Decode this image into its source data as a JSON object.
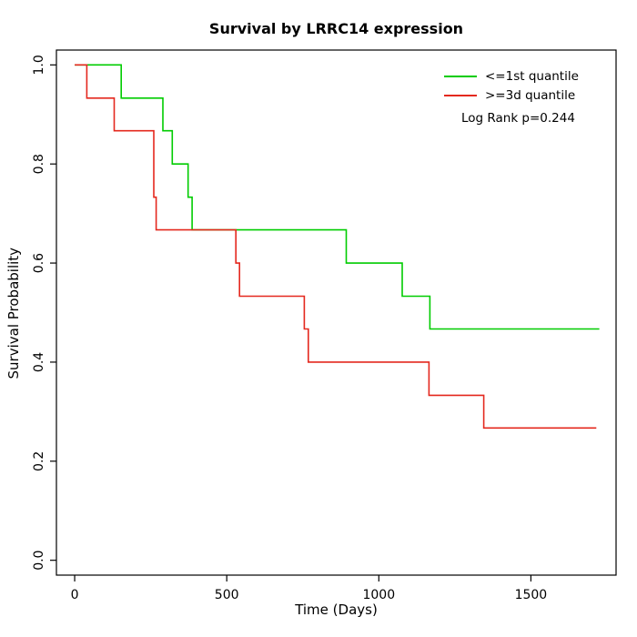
{
  "chart_data": {
    "type": "line",
    "subtype": "kaplan-meier-step",
    "title": "Survival by LRRC14 expression",
    "xlabel": "Time (Days)",
    "ylabel": "Survival Probability",
    "xlim": [
      -60,
      1780
    ],
    "ylim": [
      -0.03,
      1.03
    ],
    "xticks": [
      0,
      500,
      1000,
      1500
    ],
    "yticks": [
      0,
      0.2,
      0.4,
      0.6,
      0.8,
      1
    ],
    "grid": false,
    "frame_color": "#000000",
    "legend": {
      "position": "top-right",
      "entries": [
        {
          "label": "<=1st quantile",
          "color": "#00cc00"
        },
        {
          "label": ">=3d quantile",
          "color": "#e4281e"
        }
      ]
    },
    "annotation": "Log Rank p=0.244",
    "series": [
      {
        "name": "<=1st quantile",
        "color": "#00cc00",
        "points": [
          [
            0,
            1.0
          ],
          [
            153,
            1.0
          ],
          [
            153,
            0.933
          ],
          [
            290,
            0.933
          ],
          [
            290,
            0.867
          ],
          [
            321,
            0.867
          ],
          [
            321,
            0.8
          ],
          [
            373,
            0.8
          ],
          [
            373,
            0.733
          ],
          [
            386,
            0.733
          ],
          [
            386,
            0.667
          ],
          [
            893,
            0.667
          ],
          [
            893,
            0.6
          ],
          [
            1077,
            0.6
          ],
          [
            1077,
            0.533
          ],
          [
            1168,
            0.533
          ],
          [
            1168,
            0.467
          ],
          [
            1725,
            0.467
          ]
        ]
      },
      {
        "name": ">=3d quantile",
        "color": "#e4281e",
        "points": [
          [
            0,
            1.0
          ],
          [
            40,
            1.0
          ],
          [
            40,
            0.933
          ],
          [
            130,
            0.933
          ],
          [
            130,
            0.867
          ],
          [
            260,
            0.867
          ],
          [
            260,
            0.733
          ],
          [
            268,
            0.733
          ],
          [
            268,
            0.667
          ],
          [
            530,
            0.667
          ],
          [
            530,
            0.6
          ],
          [
            542,
            0.6
          ],
          [
            542,
            0.533
          ],
          [
            755,
            0.533
          ],
          [
            755,
            0.467
          ],
          [
            768,
            0.467
          ],
          [
            768,
            0.4
          ],
          [
            1165,
            0.4
          ],
          [
            1165,
            0.333
          ],
          [
            1345,
            0.333
          ],
          [
            1345,
            0.267
          ],
          [
            1715,
            0.267
          ]
        ]
      }
    ]
  }
}
